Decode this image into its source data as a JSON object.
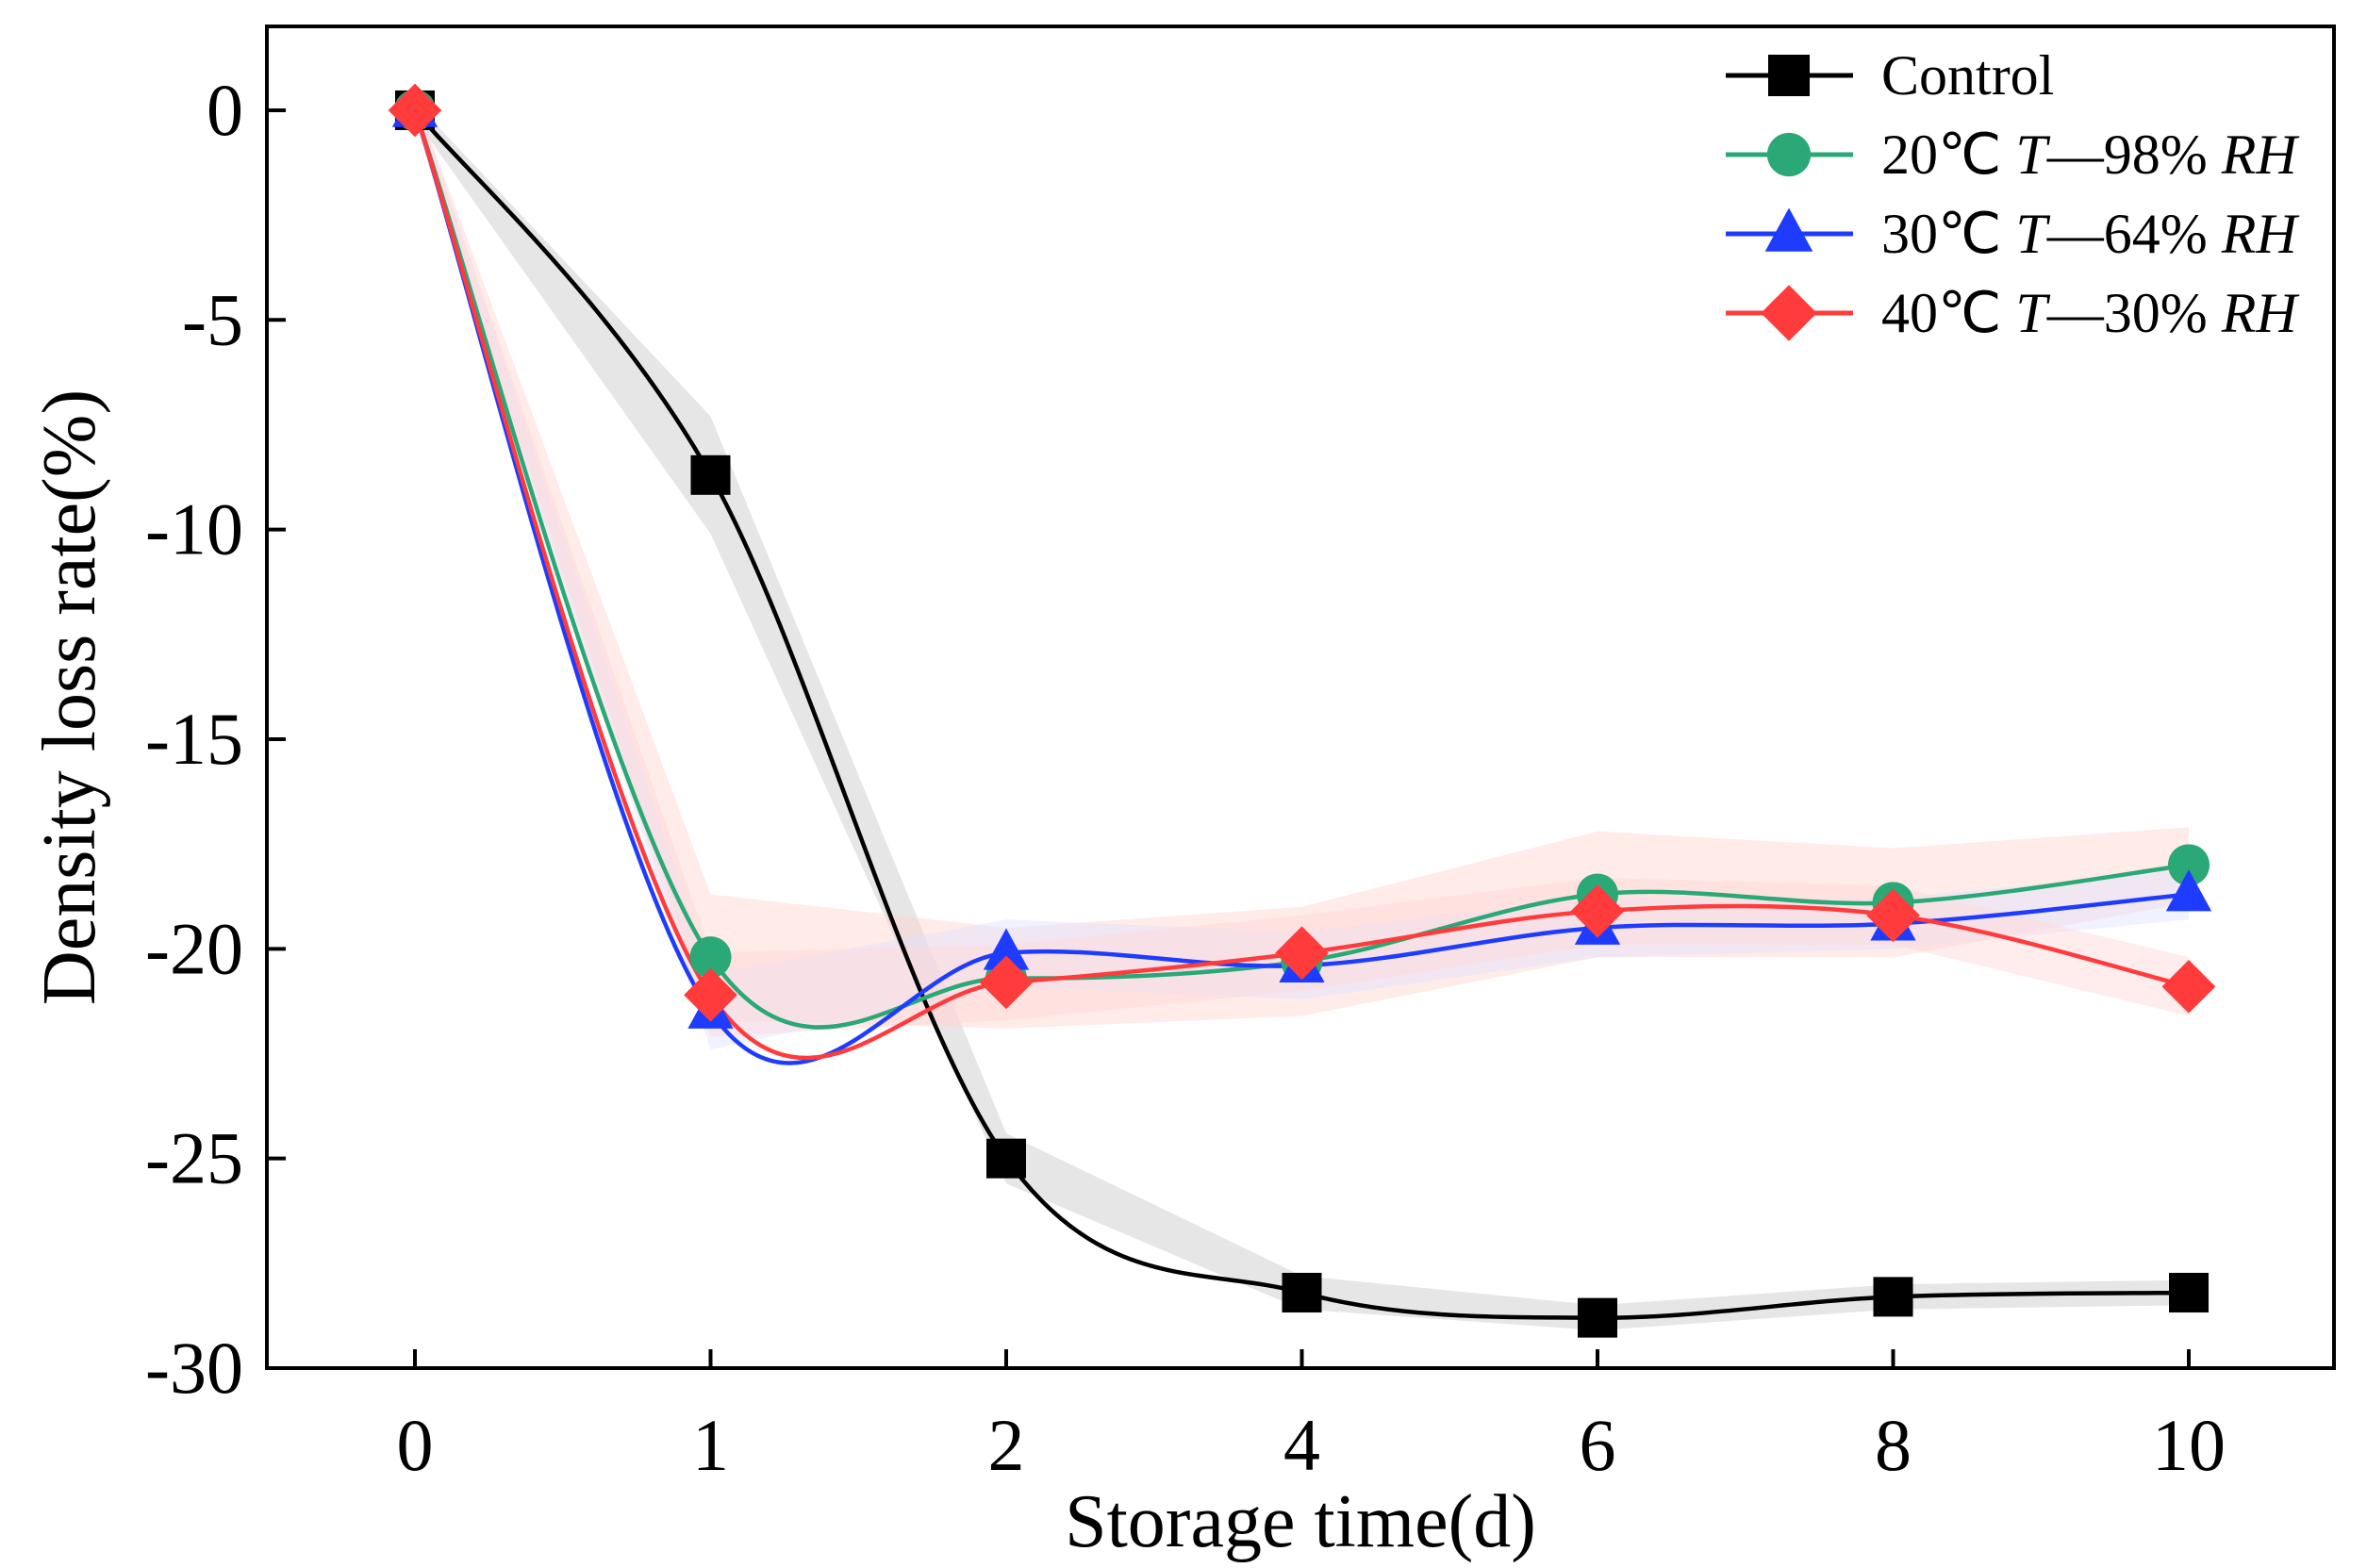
{
  "chart_data": {
    "type": "line",
    "title": "",
    "xlabel": "Storage time(d)",
    "ylabel": "Density loss rate(%)",
    "categories": [
      "0",
      "1",
      "2",
      "4",
      "6",
      "8",
      "10"
    ],
    "ylim": [
      -30,
      2
    ],
    "yticks": [
      0,
      -5,
      -10,
      -15,
      -20,
      -25,
      -30
    ],
    "ytick_labels": [
      "0",
      "-5",
      "-10",
      "-15",
      "-20",
      "-25",
      "-30"
    ],
    "grid": false,
    "legend_position": "top-right",
    "series": [
      {
        "name": "Control",
        "legend_parts": [
          "Control"
        ],
        "marker": "square",
        "color": "#000000",
        "band_color": "#c8c8c8",
        "values": [
          0,
          -8.7,
          -25.0,
          -28.2,
          -28.8,
          -28.3,
          -28.2
        ],
        "error": [
          0.2,
          1.4,
          0.6,
          0.4,
          0.3,
          0.3,
          0.3
        ]
      },
      {
        "name": "20°C T—98% RH",
        "legend_parts": [
          "20℃ ",
          "T",
          "—98% ",
          "RH"
        ],
        "marker": "circle",
        "color": "#2aa876",
        "band_color": "#ffd2cc",
        "values": [
          0,
          -20.2,
          -20.7,
          -20.3,
          -18.7,
          -18.9,
          -18.0
        ],
        "error": [
          0.3,
          1.5,
          1.2,
          1.3,
          1.5,
          1.3,
          0.9
        ]
      },
      {
        "name": "30°C T—64% RH",
        "legend_parts": [
          "30℃ ",
          "T",
          "—64% ",
          "RH"
        ],
        "marker": "triangle",
        "color": "#1e3cff",
        "band_color": "#dfe3ff",
        "values": [
          0,
          -21.5,
          -20.1,
          -20.4,
          -19.5,
          -19.4,
          -18.7
        ],
        "error": [
          0.3,
          0.9,
          0.8,
          0.8,
          0.7,
          0.6,
          0.6
        ]
      },
      {
        "name": "40°C T—30% RH",
        "legend_parts": [
          "40℃ ",
          "T",
          "—30% ",
          "RH"
        ],
        "marker": "diamond",
        "color": "#ff3b3b",
        "band_color": "#ffd6d6",
        "values": [
          0,
          -21.1,
          -20.8,
          -20.1,
          -19.1,
          -19.2,
          -20.9
        ],
        "error": [
          0.3,
          1.0,
          0.9,
          0.9,
          0.8,
          0.7,
          0.7
        ]
      }
    ]
  }
}
